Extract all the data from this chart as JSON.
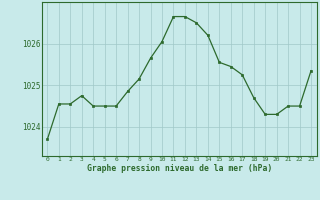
{
  "x": [
    0,
    1,
    2,
    3,
    4,
    5,
    6,
    7,
    8,
    9,
    10,
    11,
    12,
    13,
    14,
    15,
    16,
    17,
    18,
    19,
    20,
    21,
    22,
    23
  ],
  "y": [
    1023.7,
    1024.55,
    1024.55,
    1024.75,
    1024.5,
    1024.5,
    1024.5,
    1024.85,
    1025.15,
    1025.65,
    1026.05,
    1026.65,
    1026.65,
    1026.5,
    1026.2,
    1025.55,
    1025.45,
    1025.25,
    1024.7,
    1024.3,
    1024.3,
    1024.5,
    1024.5,
    1025.35
  ],
  "line_color": "#2d6a2d",
  "marker_color": "#2d6a2d",
  "bg_color": "#c8eaea",
  "grid_color": "#a0c8c8",
  "ylabel_ticks": [
    1024,
    1025,
    1026
  ],
  "xlabel": "Graphe pression niveau de la mer (hPa)",
  "ylim": [
    1023.3,
    1027.0
  ],
  "xlim": [
    -0.5,
    23.5
  ]
}
